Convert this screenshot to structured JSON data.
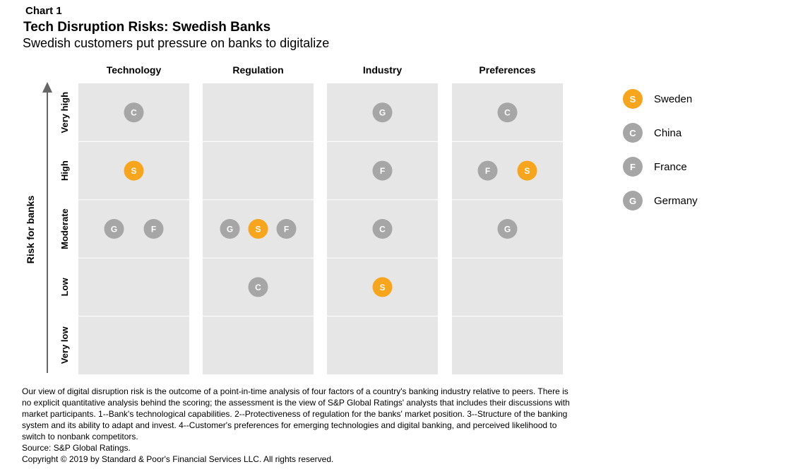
{
  "header": {
    "chart_number": "Chart 1",
    "title": "Tech Disruption Risks: Swedish Banks",
    "subtitle": "Swedish customers put pressure on banks to digitalize"
  },
  "chart_data": {
    "type": "scatter",
    "ylabel": "Risk for banks",
    "columns": [
      "Technology",
      "Regulation",
      "Industry",
      "Preferences"
    ],
    "levels": [
      "Very high",
      "High",
      "Moderate",
      "Low",
      "Very low"
    ],
    "points": [
      {
        "column": "Technology",
        "level": "Very high",
        "country": "China",
        "letter": "C"
      },
      {
        "column": "Technology",
        "level": "High",
        "country": "Sweden",
        "letter": "S"
      },
      {
        "column": "Technology",
        "level": "Moderate",
        "country": "Germany",
        "letter": "G"
      },
      {
        "column": "Technology",
        "level": "Moderate",
        "country": "France",
        "letter": "F"
      },
      {
        "column": "Regulation",
        "level": "Moderate",
        "country": "Germany",
        "letter": "G"
      },
      {
        "column": "Regulation",
        "level": "Moderate",
        "country": "Sweden",
        "letter": "S"
      },
      {
        "column": "Regulation",
        "level": "Moderate",
        "country": "France",
        "letter": "F"
      },
      {
        "column": "Regulation",
        "level": "Low",
        "country": "China",
        "letter": "C"
      },
      {
        "column": "Industry",
        "level": "Very high",
        "country": "Germany",
        "letter": "G"
      },
      {
        "column": "Industry",
        "level": "High",
        "country": "France",
        "letter": "F"
      },
      {
        "column": "Industry",
        "level": "Moderate",
        "country": "China",
        "letter": "C"
      },
      {
        "column": "Industry",
        "level": "Low",
        "country": "Sweden",
        "letter": "S"
      },
      {
        "column": "Preferences",
        "level": "Very high",
        "country": "China",
        "letter": "C"
      },
      {
        "column": "Preferences",
        "level": "High",
        "country": "France",
        "letter": "F"
      },
      {
        "column": "Preferences",
        "level": "High",
        "country": "Sweden",
        "letter": "S"
      },
      {
        "column": "Preferences",
        "level": "Moderate",
        "country": "Germany",
        "letter": "G"
      }
    ],
    "legend": [
      {
        "letter": "S",
        "label": "Sweden",
        "color": "#F7A51C"
      },
      {
        "letter": "C",
        "label": "China",
        "color": "#A6A6A6"
      },
      {
        "letter": "F",
        "label": "France",
        "color": "#A6A6A6"
      },
      {
        "letter": "G",
        "label": "Germany",
        "color": "#A6A6A6"
      }
    ],
    "legend_placement": "right",
    "colors": {
      "panel": "#E6E6E6",
      "sweden": "#F7A51C",
      "other": "#A6A6A6",
      "axis": "#666666"
    }
  },
  "footnote": {
    "text": "Our view of digital disruption risk is the outcome of a point-in-time analysis of four factors of a country's banking industry relative to peers. There is no explicit quantitative analysis behind the scoring; the assessment is the view of S&P Global Ratings' analysts that includes their discussions with market participants. 1--Bank's technological capabilities. 2--Protectiveness of regulation for the banks' market position. 3--Structure of the banking system and its ability to adapt and invest. 4--Customer's preferences for emerging technologies and digital banking, and perceived likelihood to switch to nonbank competitors.",
    "source": "Source: S&P Global Ratings.",
    "copyright": "Copyright © 2019 by Standard & Poor's Financial Services LLC. All rights reserved."
  }
}
